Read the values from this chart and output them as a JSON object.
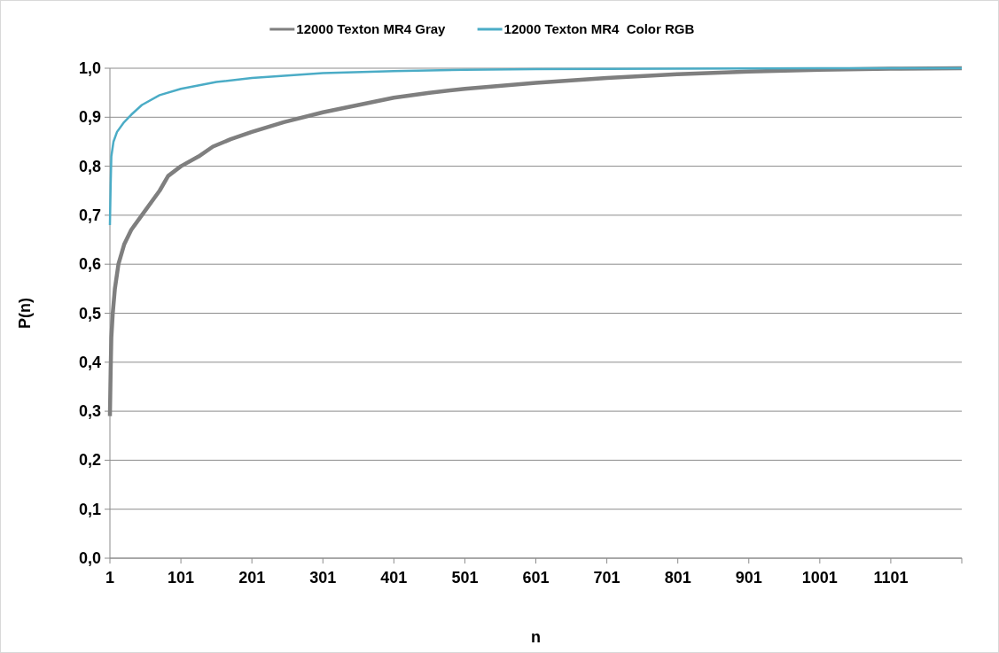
{
  "chart_data": {
    "type": "line",
    "xlabel": "n",
    "ylabel": "P(n)",
    "xlim": [
      1,
      1201
    ],
    "xticks": [
      1,
      101,
      201,
      301,
      401,
      501,
      601,
      701,
      801,
      901,
      1001,
      1101
    ],
    "ylim": [
      0,
      1
    ],
    "yticks": [
      {
        "value": 0,
        "label": "0,0"
      },
      {
        "value": 0.1,
        "label": "0,1"
      },
      {
        "value": 0.2,
        "label": "0,2"
      },
      {
        "value": 0.3,
        "label": "0,3"
      },
      {
        "value": 0.4,
        "label": "0,4"
      },
      {
        "value": 0.5,
        "label": "0,5"
      },
      {
        "value": 0.6,
        "label": "0,6"
      },
      {
        "value": 0.7,
        "label": "0,7"
      },
      {
        "value": 0.8,
        "label": "0,8"
      },
      {
        "value": 0.9,
        "label": "0,9"
      },
      {
        "value": 1,
        "label": "1,0"
      }
    ],
    "grid": "y",
    "legend": "top",
    "marker": "none",
    "line_style": "solid",
    "series": [
      {
        "name": "12000 Texton MR4 Gray",
        "color": "#7f7f7f",
        "x": [
          1,
          2,
          3,
          5,
          8,
          13,
          21,
          31,
          46,
          71,
          83,
          101,
          126,
          146,
          171,
          201,
          246,
          301,
          351,
          401,
          451,
          501,
          601,
          701,
          801,
          901,
          1001,
          1101,
          1201
        ],
        "values": [
          0.29,
          0.38,
          0.45,
          0.5,
          0.55,
          0.6,
          0.64,
          0.67,
          0.7,
          0.75,
          0.78,
          0.8,
          0.82,
          0.84,
          0.855,
          0.87,
          0.89,
          0.91,
          0.925,
          0.94,
          0.95,
          0.958,
          0.97,
          0.98,
          0.988,
          0.993,
          0.997,
          0.999,
          1.0
        ]
      },
      {
        "name": "12000 Texton MR4  Color RGB",
        "color": "#4bacc6",
        "x": [
          1,
          2,
          3,
          6,
          11,
          21,
          31,
          46,
          71,
          101,
          151,
          201,
          301,
          401,
          501,
          601,
          801,
          1001,
          1201
        ],
        "values": [
          0.68,
          0.76,
          0.82,
          0.85,
          0.87,
          0.89,
          0.905,
          0.925,
          0.945,
          0.958,
          0.972,
          0.98,
          0.99,
          0.994,
          0.997,
          0.998,
          0.999,
          1.0,
          1.0
        ]
      }
    ]
  }
}
